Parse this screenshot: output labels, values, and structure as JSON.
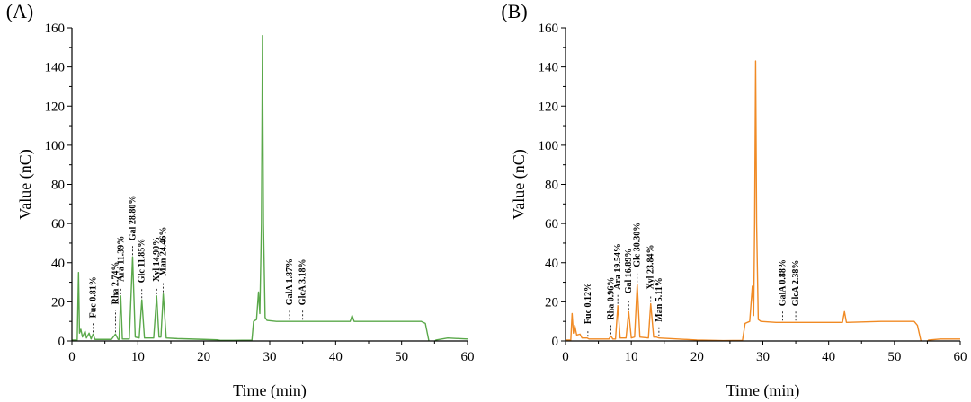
{
  "chart_data": [
    {
      "type": "line",
      "panel_label": "(A)",
      "xlabel": "Time (min)",
      "ylabel": "Value (nC)",
      "xlim": [
        0,
        60
      ],
      "ylim": [
        0,
        160
      ],
      "x_ticks": [
        0,
        10,
        20,
        30,
        40,
        50,
        60
      ],
      "y_ticks": [
        0,
        20,
        40,
        60,
        80,
        100,
        120,
        140,
        160
      ],
      "grid": false,
      "color": "#5aa84a",
      "series": [
        {
          "points": [
            [
              0.0,
              0.5
            ],
            [
              0.8,
              0.5
            ],
            [
              1.0,
              35.0
            ],
            [
              1.15,
              4.0
            ],
            [
              1.35,
              6.0
            ],
            [
              1.6,
              2.0
            ],
            [
              2.0,
              5.0
            ],
            [
              2.2,
              1.5
            ],
            [
              2.6,
              4.0
            ],
            [
              2.9,
              1.0
            ],
            [
              3.2,
              3.5
            ],
            [
              3.5,
              0.8
            ],
            [
              6.0,
              0.8
            ],
            [
              6.6,
              3.5
            ],
            [
              7.0,
              0.8
            ],
            [
              7.15,
              0.8
            ],
            [
              7.4,
              23.0
            ],
            [
              7.65,
              1.0
            ],
            [
              8.7,
              1.0
            ],
            [
              9.2,
              43.0
            ],
            [
              9.6,
              2.0
            ],
            [
              10.2,
              1.5
            ],
            [
              10.6,
              21.0
            ],
            [
              11.0,
              1.5
            ],
            [
              12.4,
              1.5
            ],
            [
              12.85,
              23.0
            ],
            [
              13.2,
              2.0
            ],
            [
              13.5,
              2.0
            ],
            [
              13.85,
              24.0
            ],
            [
              14.3,
              1.5
            ],
            [
              16.0,
              1.2
            ],
            [
              20.0,
              0.8
            ],
            [
              22.0,
              0.6
            ],
            [
              22.5,
              0.3
            ],
            [
              24.5,
              0.3
            ],
            [
              27.3,
              0.4
            ],
            [
              27.55,
              10.0
            ],
            [
              28.0,
              11.0
            ],
            [
              28.3,
              25.0
            ],
            [
              28.5,
              14.0
            ],
            [
              28.75,
              60.0
            ],
            [
              28.9,
              156.0
            ],
            [
              29.05,
              60.0
            ],
            [
              29.3,
              12.0
            ],
            [
              29.6,
              10.5
            ],
            [
              31.0,
              10.0
            ],
            [
              33.0,
              10.0
            ],
            [
              35.0,
              10.0
            ],
            [
              40.0,
              10.0
            ],
            [
              42.2,
              10.0
            ],
            [
              42.5,
              13.0
            ],
            [
              42.8,
              10.0
            ],
            [
              48.0,
              10.0
            ],
            [
              53.0,
              10.0
            ],
            [
              53.6,
              9.0
            ],
            [
              54.2,
              -1.0
            ],
            [
              54.7,
              -1.5
            ],
            [
              55.2,
              0.5
            ],
            [
              57.0,
              1.5
            ],
            [
              60.0,
              1.0
            ]
          ]
        }
      ],
      "annotations": [
        {
          "text": "Fuc 0.81%",
          "x": 3.2
        },
        {
          "text": "Rha 2.74%",
          "x": 6.6
        },
        {
          "text": "Ara 11.39%",
          "x": 7.4
        },
        {
          "text": "Gal 28.80%",
          "x": 9.2
        },
        {
          "text": "Glc 11.85%",
          "x": 10.6
        },
        {
          "text": "Xyl 14.90%",
          "x": 12.85
        },
        {
          "text": "Man 24.46%",
          "x": 13.85
        },
        {
          "text": "GalA 1.87%",
          "x": 33.0
        },
        {
          "text": "GlcA 3.18%",
          "x": 35.0
        }
      ]
    },
    {
      "type": "line",
      "panel_label": "(B)",
      "xlabel": "Time (min)",
      "ylabel": "Value (nC)",
      "xlim": [
        0,
        60
      ],
      "ylim": [
        0,
        160
      ],
      "x_ticks": [
        0,
        10,
        20,
        30,
        40,
        50,
        60
      ],
      "y_ticks": [
        0,
        20,
        40,
        60,
        80,
        100,
        120,
        140,
        160
      ],
      "grid": false,
      "color": "#f08a24",
      "series": [
        {
          "points": [
            [
              0.0,
              0.5
            ],
            [
              0.8,
              0.5
            ],
            [
              1.0,
              14.0
            ],
            [
              1.2,
              4.0
            ],
            [
              1.4,
              8.0
            ],
            [
              1.7,
              3.0
            ],
            [
              2.2,
              3.5
            ],
            [
              2.5,
              1.5
            ],
            [
              3.3,
              1.5
            ],
            [
              3.6,
              1.0
            ],
            [
              6.6,
              1.0
            ],
            [
              6.9,
              2.5
            ],
            [
              7.2,
              1.0
            ],
            [
              7.6,
              1.0
            ],
            [
              7.95,
              18.0
            ],
            [
              8.3,
              1.5
            ],
            [
              9.2,
              1.5
            ],
            [
              9.6,
              15.0
            ],
            [
              10.0,
              1.5
            ],
            [
              10.5,
              2.0
            ],
            [
              10.9,
              29.0
            ],
            [
              11.3,
              2.0
            ],
            [
              12.6,
              1.5
            ],
            [
              12.95,
              19.0
            ],
            [
              13.4,
              2.0
            ],
            [
              13.8,
              2.0
            ],
            [
              14.2,
              1.5
            ],
            [
              20.0,
              0.5
            ],
            [
              24.0,
              0.2
            ],
            [
              26.9,
              0.3
            ],
            [
              27.3,
              9.0
            ],
            [
              28.0,
              10.0
            ],
            [
              28.4,
              28.0
            ],
            [
              28.6,
              13.0
            ],
            [
              28.75,
              60.0
            ],
            [
              28.9,
              143.0
            ],
            [
              29.05,
              60.0
            ],
            [
              29.3,
              11.0
            ],
            [
              29.7,
              10.0
            ],
            [
              32.0,
              9.5
            ],
            [
              34.0,
              9.5
            ],
            [
              38.0,
              9.5
            ],
            [
              42.1,
              9.5
            ],
            [
              42.4,
              15.0
            ],
            [
              42.7,
              9.5
            ],
            [
              48.0,
              10.0
            ],
            [
              53.0,
              10.0
            ],
            [
              53.5,
              8.0
            ],
            [
              54.1,
              -1.0
            ],
            [
              54.6,
              -1.5
            ],
            [
              55.2,
              0.5
            ],
            [
              57.0,
              1.0
            ],
            [
              60.0,
              1.0
            ]
          ]
        }
      ],
      "annotations": [
        {
          "text": "Fuc 0.12%",
          "x": 3.4
        },
        {
          "text": "Rha 0.96%",
          "x": 6.9
        },
        {
          "text": "Ara 19.54%",
          "x": 7.95
        },
        {
          "text": "Gal 16.89%",
          "x": 9.6
        },
        {
          "text": "Glc 30.30%",
          "x": 10.9
        },
        {
          "text": "Xyl 23.84%",
          "x": 12.95
        },
        {
          "text": "Man 5.11%",
          "x": 14.2
        },
        {
          "text": "GalA 0.88%",
          "x": 33.0
        },
        {
          "text": "GlcA 2.38%",
          "x": 35.0
        }
      ]
    }
  ]
}
